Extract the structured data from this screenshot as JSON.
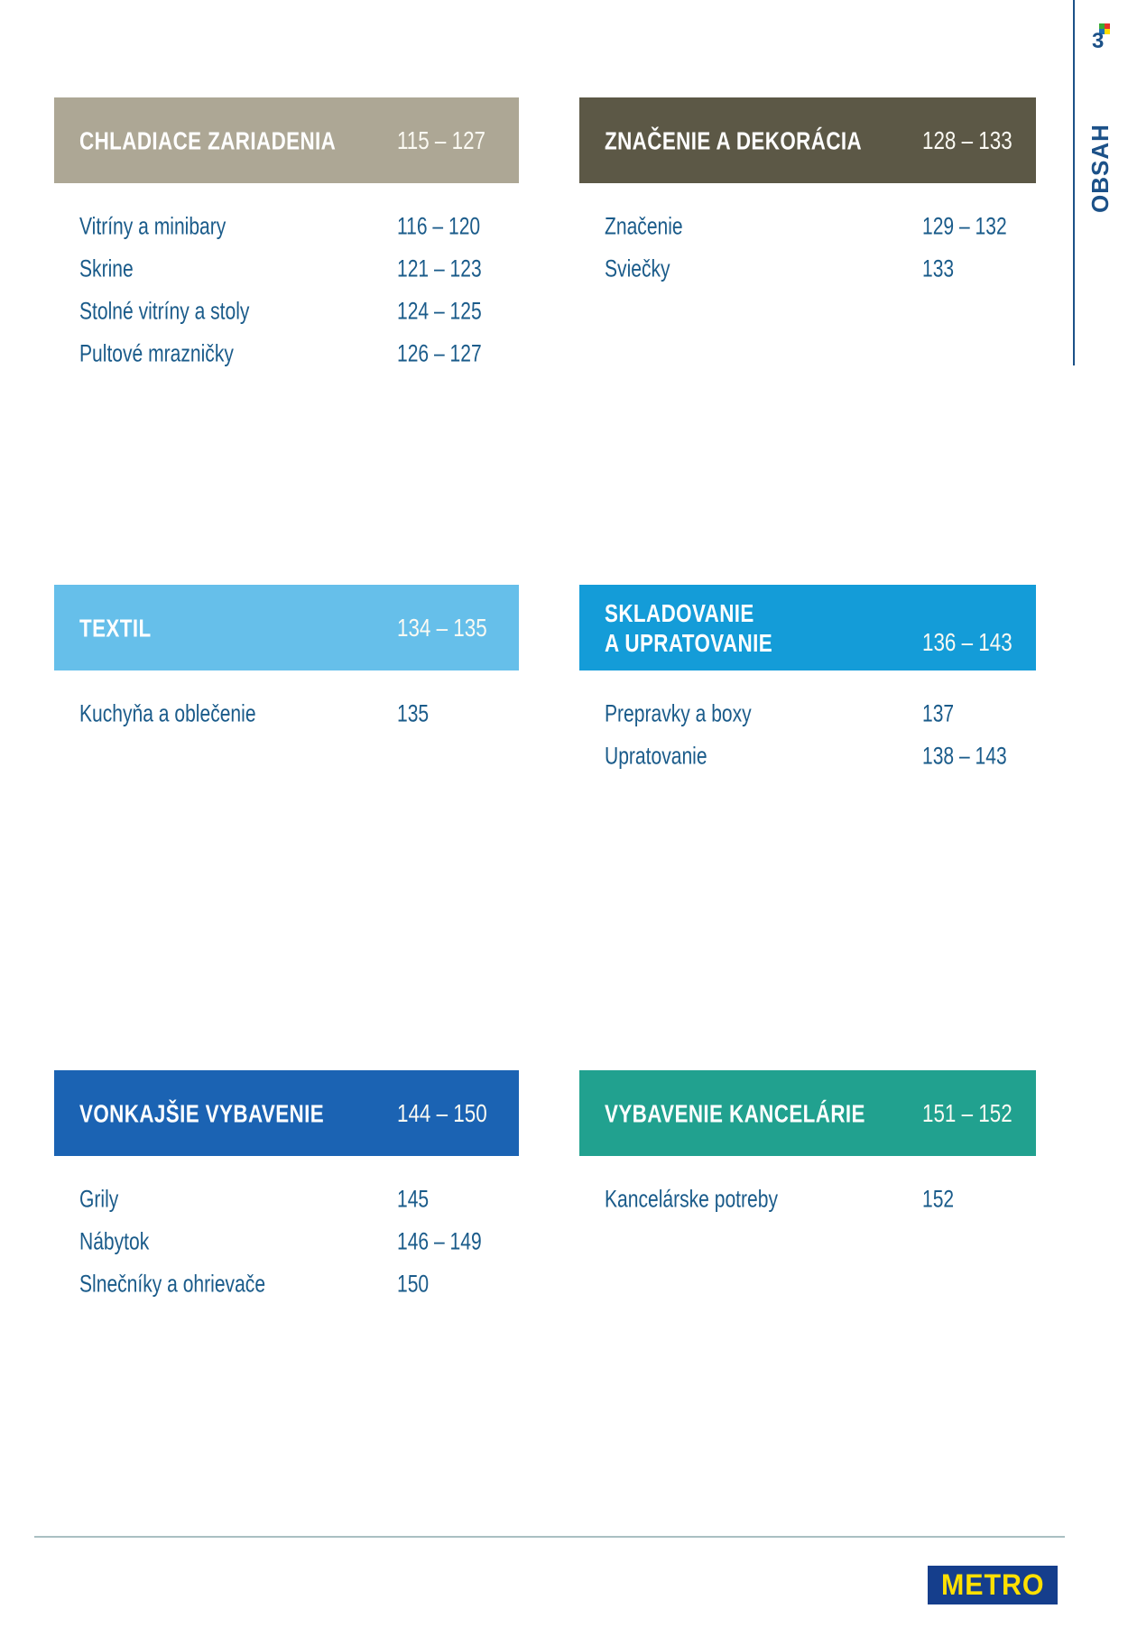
{
  "page": {
    "number": "3",
    "sidebar_label": "OBSAH"
  },
  "marker_icon": {
    "name": "four-color-pixel-icon",
    "colors": [
      "#3aaa35",
      "#e63329",
      "#1d71b8",
      "#ffde00"
    ]
  },
  "sections": [
    {
      "title": "CHLADIACE ZARIADENIA",
      "pages": "115 – 127",
      "color": "#ada795",
      "items": [
        {
          "label": "Vitríny a minibary",
          "pages": "116 – 120"
        },
        {
          "label": "Skrine",
          "pages": "121 – 123"
        },
        {
          "label": "Stolné vitríny a stoly",
          "pages": "124 – 125"
        },
        {
          "label": "Pultové mrazničky",
          "pages": "126 – 127"
        }
      ]
    },
    {
      "title": "ZNAČENIE A DEKORÁCIA",
      "pages": "128 – 133",
      "color": "#5c5846",
      "items": [
        {
          "label": "Značenie",
          "pages": "129 – 132"
        },
        {
          "label": "Sviečky",
          "pages": "133"
        }
      ]
    },
    {
      "title": "TEXTIL",
      "pages": "134 – 135",
      "color": "#66bfea",
      "items": [
        {
          "label": "Kuchyňa a oblečenie",
          "pages": "135"
        }
      ]
    },
    {
      "title": "SKLADOVANIE\nA UPRATOVANIE",
      "pages": "136 – 143",
      "color": "#149cd8",
      "items": [
        {
          "label": "Prepravky a boxy",
          "pages": "137"
        },
        {
          "label": "Upratovanie",
          "pages": "138 – 143"
        }
      ]
    },
    {
      "title": "VONKAJŠIE VYBAVENIE",
      "pages": "144 – 150",
      "color": "#1b63b3",
      "items": [
        {
          "label": "Grily",
          "pages": "145"
        },
        {
          "label": "Nábytok",
          "pages": "146 – 149"
        },
        {
          "label": "Slnečníky a ohrievače",
          "pages": "150"
        }
      ]
    },
    {
      "title": "VYBAVENIE KANCELÁRIE",
      "pages": "151 – 152",
      "color": "#21a18f",
      "items": [
        {
          "label": "Kancelárske potreby",
          "pages": "152"
        }
      ]
    }
  ],
  "logo": {
    "label": "METRO",
    "background": "#153e8c",
    "text_color": "#ffe000"
  }
}
